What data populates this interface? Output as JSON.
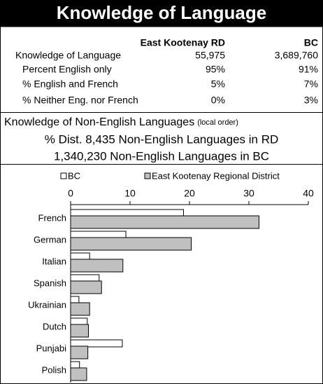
{
  "header": {
    "title": "Knowledge of Language"
  },
  "table": {
    "columns": [
      "East Kootenay RD",
      "BC"
    ],
    "rows": [
      [
        "Knowledge of Language",
        "55,975",
        "3,689,760"
      ],
      [
        "Percent English only",
        "95%",
        "91%"
      ],
      [
        "% English and French",
        "5%",
        "7%"
      ],
      [
        "% Neither Eng. nor French",
        "0%",
        "3%"
      ]
    ]
  },
  "notes": {
    "heading": "Knowledge of Non-English Languages",
    "heading_note": "(local order)",
    "lines": [
      "% Dist. 8,435 Non-English Languages in RD",
      "1,340,230 Non-English Languages in BC"
    ]
  },
  "chart_data": {
    "type": "bar",
    "orientation": "horizontal",
    "categories": [
      "French",
      "German",
      "Italian",
      "Spanish",
      "Ukrainian",
      "Dutch",
      "Punjabi",
      "Polish"
    ],
    "series": [
      {
        "name": "BC",
        "color": "#ffffff",
        "values": [
          19.0,
          9.3,
          3.2,
          4.8,
          1.4,
          2.8,
          8.7,
          1.5
        ]
      },
      {
        "name": "East Kootenay Regional District",
        "color": "#c0c0c0",
        "values": [
          31.7,
          20.3,
          8.8,
          5.2,
          3.2,
          3.0,
          2.9,
          2.7
        ]
      }
    ],
    "xlim": [
      0,
      40
    ],
    "xticks": [
      0,
      10,
      20,
      30,
      40
    ],
    "legend": "top"
  }
}
